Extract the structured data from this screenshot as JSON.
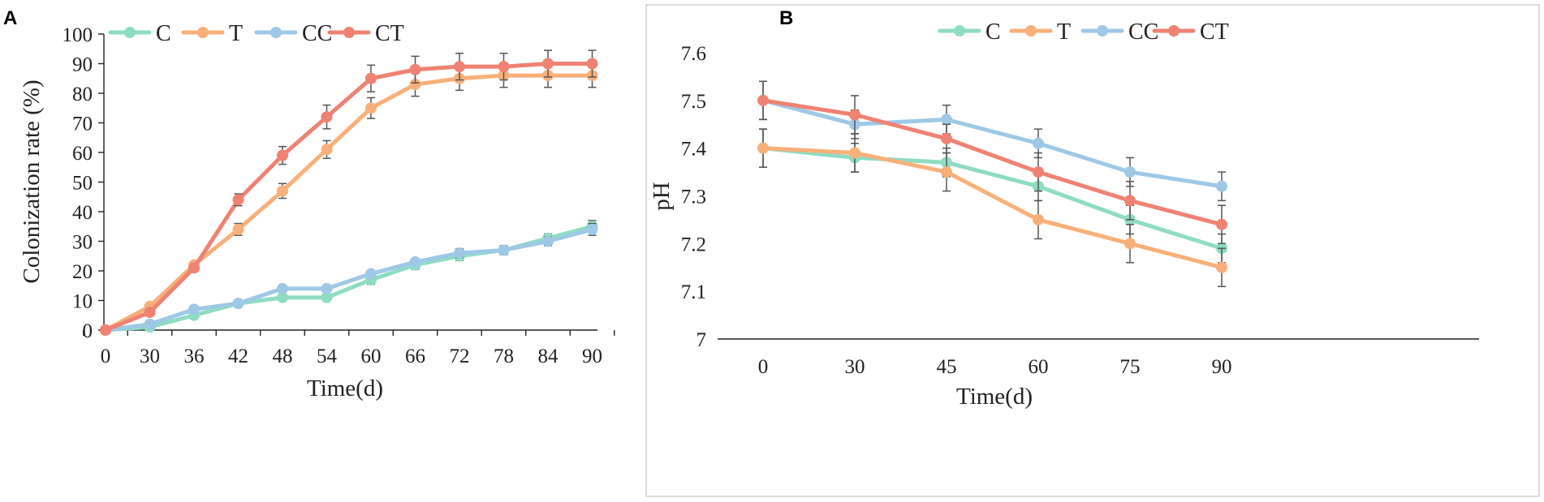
{
  "panels": [
    {
      "letter": "A"
    },
    {
      "letter": "B"
    }
  ],
  "chart_data": [
    {
      "type": "line",
      "panel": "A",
      "title": "",
      "xlabel": "Time(d)",
      "ylabel": "Colonization rate (%)",
      "categories": [
        "0",
        "30",
        "36",
        "42",
        "48",
        "54",
        "60",
        "66",
        "72",
        "78",
        "84",
        "90"
      ],
      "yticks": [
        "0",
        "10",
        "20",
        "30",
        "40",
        "50",
        "60",
        "70",
        "80",
        "90",
        "100"
      ],
      "ylim": [
        0,
        100
      ],
      "legend_position": "top-left",
      "series": [
        {
          "name": "C",
          "color": "#8fdcc3",
          "values": [
            0,
            1,
            5,
            9,
            11,
            11,
            17,
            22,
            25,
            27,
            31,
            35
          ],
          "errors": [
            0,
            0.5,
            0.5,
            1,
            1,
            1,
            1.5,
            1.5,
            1.5,
            1.5,
            1.5,
            2
          ]
        },
        {
          "name": "T",
          "color": "#f8b07a",
          "values": [
            0,
            8,
            22,
            34,
            47,
            61,
            75,
            83,
            85,
            86,
            86,
            86
          ],
          "errors": [
            0,
            1,
            1,
            2,
            2.5,
            3,
            3.5,
            4,
            4,
            4,
            4,
            4
          ]
        },
        {
          "name": "CC",
          "color": "#9ec8e6",
          "values": [
            0,
            2,
            7,
            9,
            14,
            14,
            19,
            23,
            26,
            27,
            30,
            34
          ],
          "errors": [
            0,
            0.5,
            0.5,
            1,
            1,
            1,
            1,
            1,
            1.5,
            1.5,
            1.5,
            2
          ]
        },
        {
          "name": "CT",
          "color": "#ef8273",
          "values": [
            0,
            6,
            21,
            44,
            59,
            72,
            85,
            88,
            89,
            89,
            90,
            90
          ],
          "errors": [
            0,
            1,
            1,
            2,
            3,
            4,
            4.5,
            4.5,
            4.5,
            4.5,
            4.5,
            4.5
          ]
        }
      ]
    },
    {
      "type": "line",
      "panel": "B",
      "title": "",
      "xlabel": "Time(d)",
      "ylabel": "pH",
      "categories": [
        "0",
        "30",
        "45",
        "60",
        "75",
        "90"
      ],
      "yticks": [
        "7",
        "7.1",
        "7.2",
        "7.3",
        "7.4",
        "7.5",
        "7.6"
      ],
      "ylim": [
        7.0,
        7.6
      ],
      "legend_position": "top-right",
      "series": [
        {
          "name": "C",
          "color": "#8fdcc3",
          "values": [
            7.4,
            7.38,
            7.37,
            7.32,
            7.25,
            7.19
          ],
          "errors": [
            0.04,
            0.03,
            0.03,
            0.03,
            0.03,
            0.03
          ]
        },
        {
          "name": "T",
          "color": "#f8b07a",
          "values": [
            7.4,
            7.39,
            7.35,
            7.25,
            7.2,
            7.15
          ],
          "errors": [
            0.04,
            0.04,
            0.04,
            0.04,
            0.04,
            0.04
          ]
        },
        {
          "name": "CC",
          "color": "#9ec8e6",
          "values": [
            7.5,
            7.45,
            7.46,
            7.41,
            7.35,
            7.32
          ],
          "errors": [
            0.04,
            0.03,
            0.03,
            0.03,
            0.03,
            0.03
          ]
        },
        {
          "name": "CT",
          "color": "#ef8273",
          "values": [
            7.5,
            7.47,
            7.42,
            7.35,
            7.29,
            7.24
          ],
          "errors": [
            0.04,
            0.04,
            0.03,
            0.04,
            0.04,
            0.04
          ]
        }
      ]
    }
  ]
}
